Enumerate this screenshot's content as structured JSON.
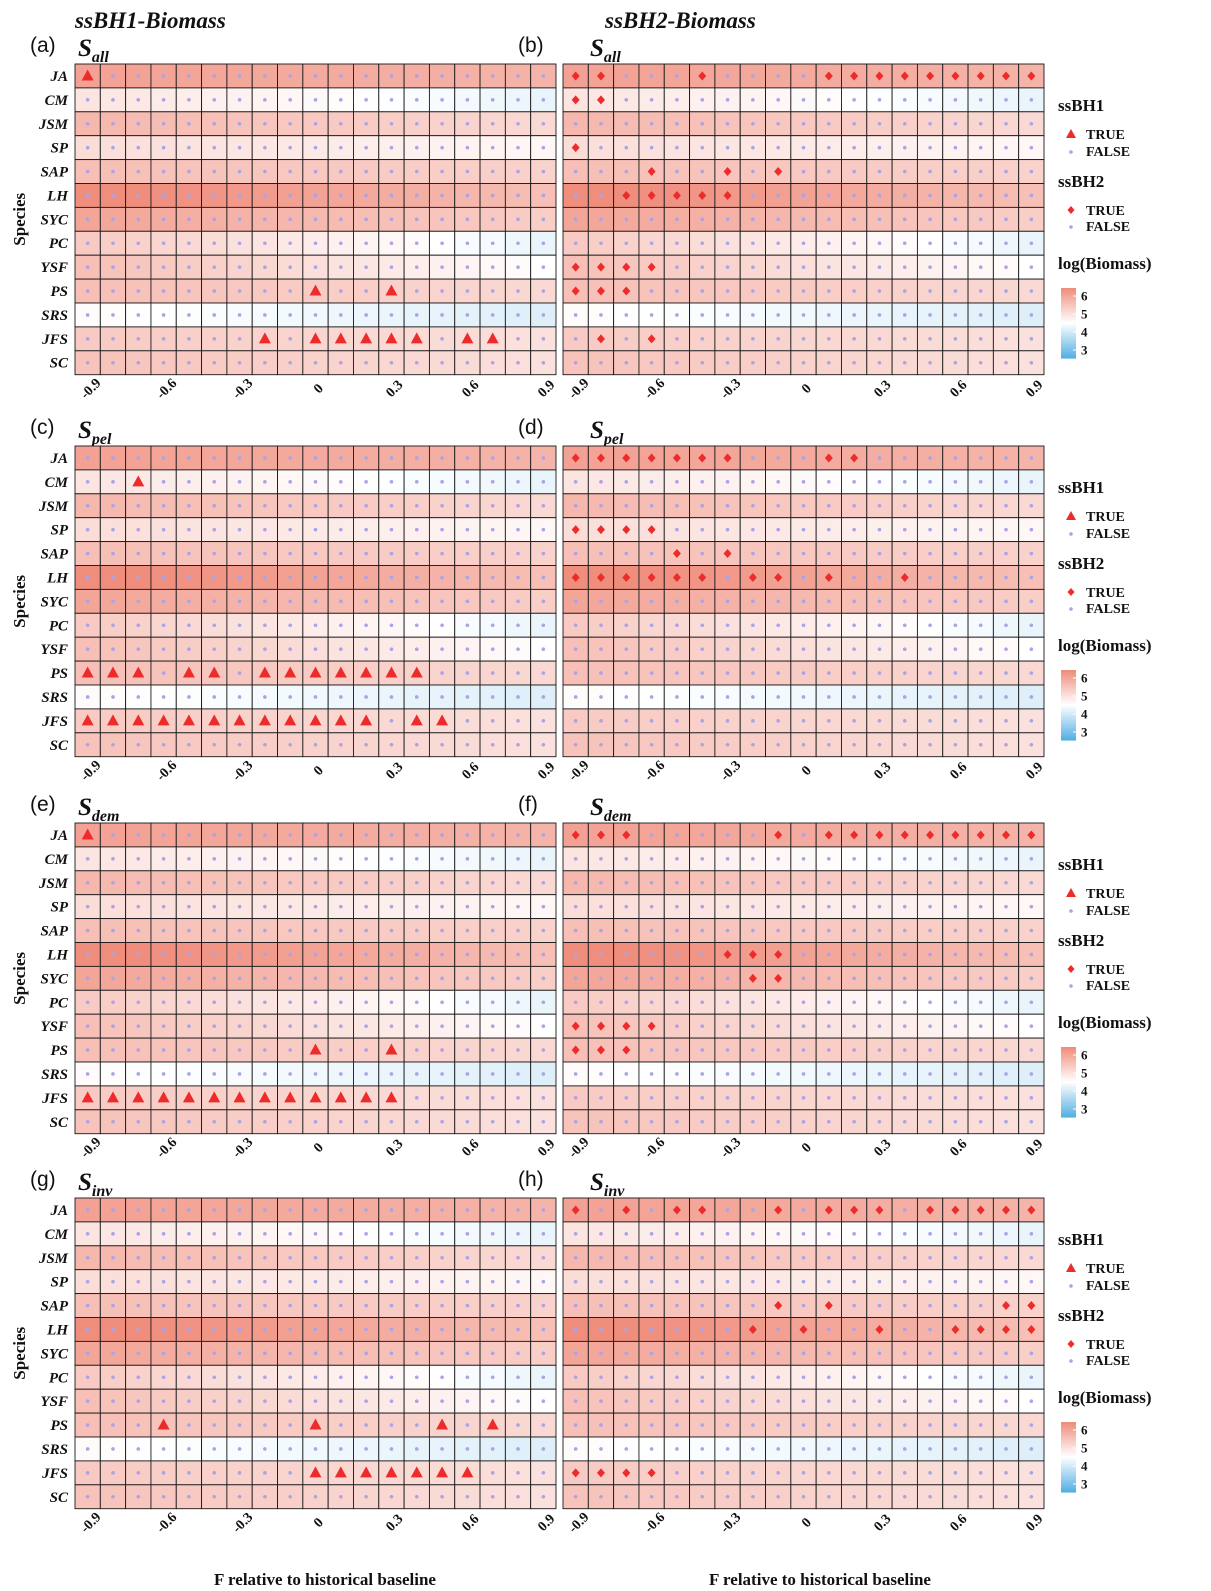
{
  "column_titles": [
    "ssBH1-Biomass",
    "ssBH2-Biomass"
  ],
  "axis_titles": {
    "y": "Species",
    "x": "F relative to historical baseline"
  },
  "legend": {
    "ssbh1_title": "ssBH1",
    "ssbh2_title": "ssBH2",
    "true_label": "TRUE",
    "false_label": "FALSE",
    "color_title": "log(Biomass)",
    "color_ticks": [
      "6",
      "5",
      "4",
      "3"
    ],
    "colors": {
      "high": "#F08E7E",
      "mid": "#FFFFFF",
      "low": "#58B1E3",
      "marker_true": "#EE2B2B",
      "marker_false": "#A9A3E8"
    }
  },
  "chart_data": {
    "type": "heatmap",
    "species": [
      "JA",
      "CM",
      "JSM",
      "SP",
      "SAP",
      "LH",
      "SYC",
      "PC",
      "YSF",
      "PS",
      "SRS",
      "JFS",
      "SC"
    ],
    "x": [
      -0.9,
      -0.8,
      -0.7,
      -0.6,
      -0.5,
      -0.4,
      -0.3,
      -0.2,
      -0.1,
      0,
      0.1,
      0.2,
      0.3,
      0.4,
      0.5,
      0.6,
      0.7,
      0.8,
      0.9
    ],
    "x_ticks": [
      "-0.9",
      "-0.6",
      "-0.3",
      "0",
      "0.3",
      "0.6",
      "0.9"
    ],
    "color_range": [
      3,
      6
    ],
    "panels": [
      {
        "tag": "(a)",
        "s_main": "S",
        "s_sub": "all",
        "model": "ssBH1",
        "true_cells": [
          [
            "JA",
            -0.9
          ],
          [
            "PS",
            0
          ],
          [
            "PS",
            0.3
          ],
          [
            "JFS",
            -0.2
          ],
          [
            "JFS",
            0
          ],
          [
            "JFS",
            0.1
          ],
          [
            "JFS",
            0.2
          ],
          [
            "JFS",
            0.3
          ],
          [
            "JFS",
            0.4
          ],
          [
            "JFS",
            0.6
          ],
          [
            "JFS",
            0.7
          ]
        ]
      },
      {
        "tag": "(b)",
        "s_main": "S",
        "s_sub": "all",
        "model": "ssBH2",
        "true_cells": [
          [
            "JA",
            -0.9
          ],
          [
            "JA",
            -0.8
          ],
          [
            "JA",
            -0.4
          ],
          [
            "JA",
            0.1
          ],
          [
            "JA",
            0.2
          ],
          [
            "JA",
            0.3
          ],
          [
            "JA",
            0.4
          ],
          [
            "JA",
            0.5
          ],
          [
            "JA",
            0.6
          ],
          [
            "JA",
            0.7
          ],
          [
            "JA",
            0.8
          ],
          [
            "JA",
            0.9
          ],
          [
            "CM",
            -0.9
          ],
          [
            "CM",
            -0.8
          ],
          [
            "SP",
            -0.9
          ],
          [
            "SAP",
            -0.6
          ],
          [
            "SAP",
            -0.3
          ],
          [
            "SAP",
            -0.1
          ],
          [
            "LH",
            -0.7
          ],
          [
            "LH",
            -0.6
          ],
          [
            "LH",
            -0.5
          ],
          [
            "LH",
            -0.4
          ],
          [
            "LH",
            -0.3
          ],
          [
            "YSF",
            -0.9
          ],
          [
            "YSF",
            -0.8
          ],
          [
            "YSF",
            -0.7
          ],
          [
            "YSF",
            -0.6
          ],
          [
            "PS",
            -0.9
          ],
          [
            "PS",
            -0.8
          ],
          [
            "PS",
            -0.7
          ],
          [
            "JFS",
            -0.8
          ],
          [
            "JFS",
            -0.6
          ]
        ]
      },
      {
        "tag": "(c)",
        "s_main": "S",
        "s_sub": "pel",
        "model": "ssBH1",
        "true_cells": [
          [
            "CM",
            -0.7
          ],
          [
            "PS",
            -0.9
          ],
          [
            "PS",
            -0.8
          ],
          [
            "PS",
            -0.7
          ],
          [
            "PS",
            -0.5
          ],
          [
            "PS",
            -0.4
          ],
          [
            "PS",
            -0.2
          ],
          [
            "PS",
            -0.1
          ],
          [
            "PS",
            0
          ],
          [
            "PS",
            0.1
          ],
          [
            "PS",
            0.2
          ],
          [
            "PS",
            0.3
          ],
          [
            "PS",
            0.4
          ],
          [
            "JFS",
            -0.9
          ],
          [
            "JFS",
            -0.8
          ],
          [
            "JFS",
            -0.7
          ],
          [
            "JFS",
            -0.6
          ],
          [
            "JFS",
            -0.5
          ],
          [
            "JFS",
            -0.4
          ],
          [
            "JFS",
            -0.3
          ],
          [
            "JFS",
            -0.2
          ],
          [
            "JFS",
            -0.1
          ],
          [
            "JFS",
            0
          ],
          [
            "JFS",
            0.1
          ],
          [
            "JFS",
            0.2
          ],
          [
            "JFS",
            0.4
          ],
          [
            "JFS",
            0.5
          ]
        ]
      },
      {
        "tag": "(d)",
        "s_main": "S",
        "s_sub": "pel",
        "model": "ssBH2",
        "true_cells": [
          [
            "JA",
            -0.9
          ],
          [
            "JA",
            -0.8
          ],
          [
            "JA",
            -0.7
          ],
          [
            "JA",
            -0.6
          ],
          [
            "JA",
            -0.5
          ],
          [
            "JA",
            -0.4
          ],
          [
            "JA",
            -0.3
          ],
          [
            "JA",
            0.1
          ],
          [
            "JA",
            0.2
          ],
          [
            "SP",
            -0.9
          ],
          [
            "SP",
            -0.8
          ],
          [
            "SP",
            -0.7
          ],
          [
            "SP",
            -0.6
          ],
          [
            "SAP",
            -0.5
          ],
          [
            "SAP",
            -0.3
          ],
          [
            "LH",
            -0.9
          ],
          [
            "LH",
            -0.8
          ],
          [
            "LH",
            -0.7
          ],
          [
            "LH",
            -0.6
          ],
          [
            "LH",
            -0.5
          ],
          [
            "LH",
            -0.4
          ],
          [
            "LH",
            -0.2
          ],
          [
            "LH",
            -0.1
          ],
          [
            "LH",
            0.1
          ],
          [
            "LH",
            0.4
          ]
        ]
      },
      {
        "tag": "(e)",
        "s_main": "S",
        "s_sub": "dem",
        "model": "ssBH1",
        "true_cells": [
          [
            "JA",
            -0.9
          ],
          [
            "PS",
            0
          ],
          [
            "PS",
            0.3
          ],
          [
            "JFS",
            -0.9
          ],
          [
            "JFS",
            -0.8
          ],
          [
            "JFS",
            -0.7
          ],
          [
            "JFS",
            -0.6
          ],
          [
            "JFS",
            -0.5
          ],
          [
            "JFS",
            -0.4
          ],
          [
            "JFS",
            -0.3
          ],
          [
            "JFS",
            -0.2
          ],
          [
            "JFS",
            -0.1
          ],
          [
            "JFS",
            0
          ],
          [
            "JFS",
            0.1
          ],
          [
            "JFS",
            0.2
          ],
          [
            "JFS",
            0.3
          ]
        ]
      },
      {
        "tag": "(f)",
        "s_main": "S",
        "s_sub": "dem",
        "model": "ssBH2",
        "true_cells": [
          [
            "JA",
            -0.9
          ],
          [
            "JA",
            -0.8
          ],
          [
            "JA",
            -0.7
          ],
          [
            "JA",
            -0.1
          ],
          [
            "JA",
            0.1
          ],
          [
            "JA",
            0.2
          ],
          [
            "JA",
            0.3
          ],
          [
            "JA",
            0.4
          ],
          [
            "JA",
            0.5
          ],
          [
            "JA",
            0.6
          ],
          [
            "JA",
            0.7
          ],
          [
            "JA",
            0.8
          ],
          [
            "JA",
            0.9
          ],
          [
            "LH",
            -0.3
          ],
          [
            "LH",
            -0.2
          ],
          [
            "LH",
            -0.1
          ],
          [
            "SYC",
            -0.2
          ],
          [
            "SYC",
            -0.1
          ],
          [
            "YSF",
            -0.9
          ],
          [
            "YSF",
            -0.8
          ],
          [
            "YSF",
            -0.7
          ],
          [
            "YSF",
            -0.6
          ],
          [
            "PS",
            -0.9
          ],
          [
            "PS",
            -0.8
          ],
          [
            "PS",
            -0.7
          ]
        ]
      },
      {
        "tag": "(g)",
        "s_main": "S",
        "s_sub": "inv",
        "model": "ssBH1",
        "true_cells": [
          [
            "PS",
            -0.6
          ],
          [
            "PS",
            0
          ],
          [
            "PS",
            0.5
          ],
          [
            "PS",
            0.7
          ],
          [
            "JFS",
            0
          ],
          [
            "JFS",
            0.1
          ],
          [
            "JFS",
            0.2
          ],
          [
            "JFS",
            0.3
          ],
          [
            "JFS",
            0.4
          ],
          [
            "JFS",
            0.5
          ],
          [
            "JFS",
            0.6
          ]
        ]
      },
      {
        "tag": "(h)",
        "s_main": "S",
        "s_sub": "inv",
        "model": "ssBH2",
        "true_cells": [
          [
            "JA",
            -0.9
          ],
          [
            "JA",
            -0.7
          ],
          [
            "JA",
            -0.5
          ],
          [
            "JA",
            -0.4
          ],
          [
            "JA",
            -0.1
          ],
          [
            "JA",
            0.1
          ],
          [
            "JA",
            0.2
          ],
          [
            "JA",
            0.3
          ],
          [
            "JA",
            0.5
          ],
          [
            "JA",
            0.6
          ],
          [
            "JA",
            0.7
          ],
          [
            "JA",
            0.8
          ],
          [
            "JA",
            0.9
          ],
          [
            "SAP",
            -0.1
          ],
          [
            "SAP",
            0.1
          ],
          [
            "SAP",
            0.8
          ],
          [
            "SAP",
            0.9
          ],
          [
            "LH",
            -0.2
          ],
          [
            "LH",
            0
          ],
          [
            "LH",
            0.3
          ],
          [
            "LH",
            0.6
          ],
          [
            "LH",
            0.7
          ],
          [
            "LH",
            0.8
          ],
          [
            "LH",
            0.9
          ],
          [
            "JFS",
            -0.9
          ],
          [
            "JFS",
            -0.8
          ],
          [
            "JFS",
            -0.7
          ],
          [
            "JFS",
            -0.6
          ]
        ]
      }
    ]
  }
}
